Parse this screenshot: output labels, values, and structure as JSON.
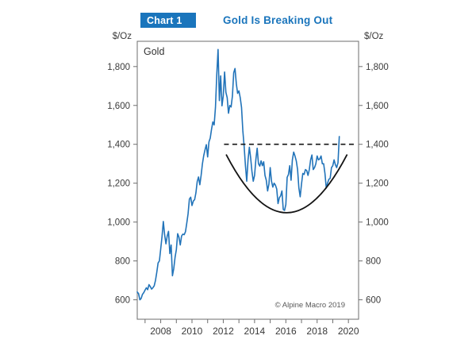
{
  "header": {
    "badge": "Chart 1",
    "title": "Gold Is Breaking Out"
  },
  "axes": {
    "left_unit": "$/Oz",
    "right_unit": "$/Oz"
  },
  "plot": {
    "series_label": "Gold",
    "copyright": "© Alpine Macro 2019"
  },
  "colors": {
    "accent_blue": "#1a75bc",
    "line_blue": "#2173b9",
    "annotation_black": "#141414",
    "frame_gray": "#6e6e6e",
    "label_dark": "#3a3a3a",
    "copyright_gray": "#595959"
  },
  "chart_data": {
    "type": "line",
    "title": "Gold Is Breaking Out",
    "series_label": "Gold",
    "ylabel": "$/Oz",
    "x_range": [
      2006.5,
      2020.65
    ],
    "y_range": [
      500,
      1930
    ],
    "y_ticks": [
      600,
      800,
      1000,
      1200,
      1400,
      1600,
      1800
    ],
    "x_minor_ticks": [
      2007,
      2008,
      2009,
      2010,
      2011,
      2012,
      2013,
      2014,
      2015,
      2016,
      2017,
      2018,
      2019,
      2020
    ],
    "x_tick_labels": [
      2008,
      2010,
      2012,
      2014,
      2016,
      2018,
      2020
    ],
    "grid": false,
    "legend_position": "none",
    "x_start": 2006.5,
    "x_step": 0.083333,
    "values": [
      640,
      632,
      600,
      607,
      628,
      637,
      650,
      662,
      652,
      678,
      668,
      655,
      662,
      672,
      700,
      742,
      790,
      800,
      862,
      925,
      1003,
      935,
      888,
      928,
      952,
      838,
      882,
      724,
      760,
      818,
      858,
      940,
      922,
      882,
      928,
      938,
      935,
      950,
      995,
      1043,
      1118,
      1128,
      1085,
      1108,
      1115,
      1150,
      1208,
      1232,
      1192,
      1240,
      1300,
      1342,
      1372,
      1398,
      1335,
      1412,
      1432,
      1478,
      1515,
      1500,
      1590,
      1758,
      1888,
      1625,
      1752,
      1598,
      1650,
      1772,
      1668,
      1640,
      1560,
      1600,
      1592,
      1648,
      1768,
      1790,
      1712,
      1662,
      1675,
      1640,
      1590,
      1470,
      1390,
      1290,
      1210,
      1320,
      1385,
      1330,
      1260,
      1210,
      1240,
      1322,
      1380,
      1300,
      1288,
      1315,
      1290,
      1310,
      1240,
      1215,
      1160,
      1195,
      1280,
      1210,
      1180,
      1200,
      1190,
      1170,
      1095,
      1125,
      1135,
      1160,
      1065,
      1060,
      1090,
      1230,
      1245,
      1290,
      1215,
      1320,
      1360,
      1340,
      1315,
      1270,
      1175,
      1130,
      1195,
      1250,
      1245,
      1270,
      1265,
      1240,
      1270,
      1320,
      1345,
      1270,
      1280,
      1300,
      1340,
      1320,
      1325,
      1340,
      1300,
      1300,
      1250,
      1175,
      1200,
      1220,
      1225,
      1280,
      1290,
      1320,
      1295,
      1280,
      1305,
      1440
    ],
    "annotations": {
      "breakout_line": {
        "type": "dashed-horizontal",
        "value": 1400,
        "x_start": 2012.05,
        "x_end": 2020.4
      },
      "cup": {
        "type": "saucer-curve",
        "x_start": 2012.2,
        "x_end": 2019.9,
        "v_ends": 1345,
        "v_bottom": 1048
      }
    }
  }
}
